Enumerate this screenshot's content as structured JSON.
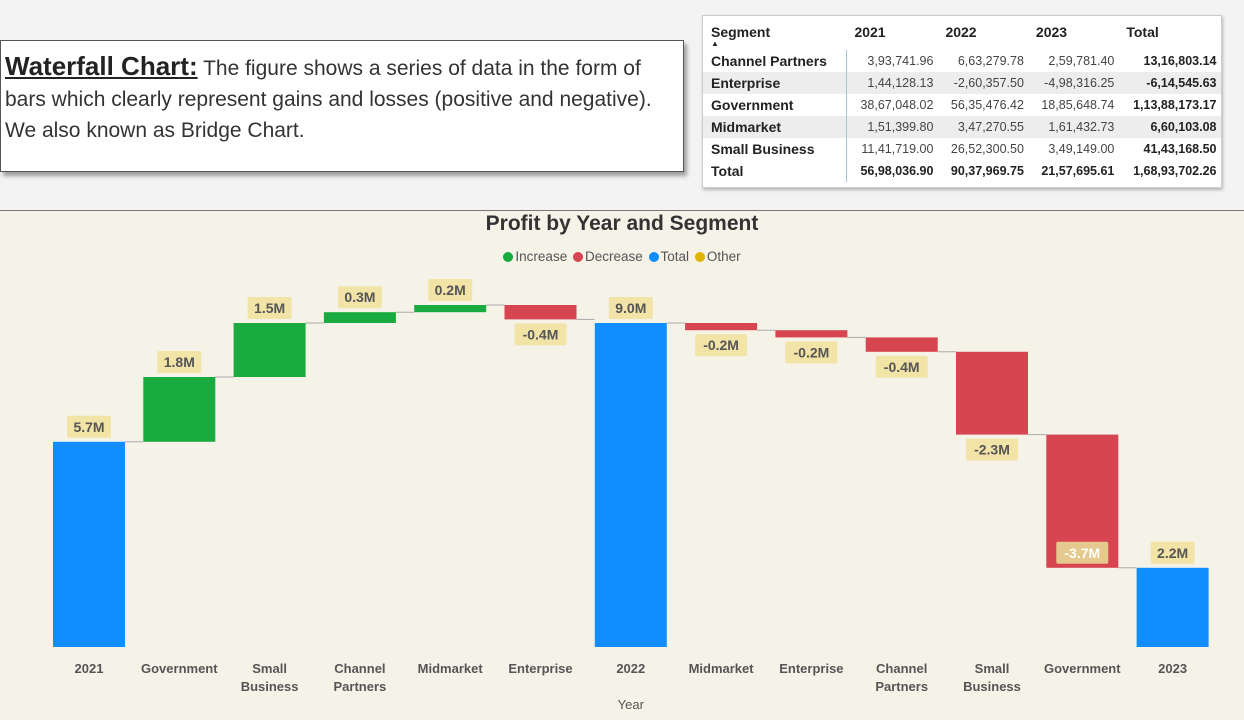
{
  "description": {
    "title": "Waterfall Chart:",
    "text": " The figure shows a series of data in the form of bars which clearly represent gains and losses (positive and negative). We also known as Bridge Chart."
  },
  "table": {
    "headers": [
      "Segment",
      "2021",
      "2022",
      "2023",
      "Total"
    ],
    "sort_indicator": "▲",
    "rows": [
      {
        "segment": "Channel Partners",
        "y2021": "3,93,741.96",
        "y2022": "6,63,279.78",
        "y2023": "2,59,781.40",
        "total": "13,16,803.14"
      },
      {
        "segment": "Enterprise",
        "y2021": "1,44,128.13",
        "y2022": "-2,60,357.50",
        "y2023": "-4,98,316.25",
        "total": "-6,14,545.63"
      },
      {
        "segment": "Government",
        "y2021": "38,67,048.02",
        "y2022": "56,35,476.42",
        "y2023": "18,85,648.74",
        "total": "1,13,88,173.17"
      },
      {
        "segment": "Midmarket",
        "y2021": "1,51,399.80",
        "y2022": "3,47,270.55",
        "y2023": "1,61,432.73",
        "total": "6,60,103.08"
      },
      {
        "segment": "Small Business",
        "y2021": "11,41,719.00",
        "y2022": "26,52,300.50",
        "y2023": "3,49,149.00",
        "total": "41,43,168.50"
      }
    ],
    "total_row": {
      "segment": "Total",
      "y2021": "56,98,036.90",
      "y2022": "90,37,969.75",
      "y2023": "21,57,695.61",
      "total": "1,68,93,702.26"
    }
  },
  "chart_data": {
    "type": "waterfall",
    "title": "Profit by Year and Segment",
    "xlabel": "Year",
    "ylabel": "",
    "legend": [
      {
        "name": "Increase",
        "color": "#1aab40"
      },
      {
        "name": "Decrease",
        "color": "#d64550"
      },
      {
        "name": "Total",
        "color": "#118dff"
      },
      {
        "name": "Other",
        "color": "#e0b400"
      }
    ],
    "legend_position": "top-center",
    "categories": [
      "2021",
      "Government",
      "Small Business",
      "Channel Partners",
      "Midmarket",
      "Enterprise",
      "2022",
      "Midmarket",
      "Enterprise",
      "Channel Partners",
      "Small Business",
      "Government",
      "2023"
    ],
    "values": [
      5.7,
      1.8,
      1.5,
      0.3,
      0.2,
      -0.4,
      9.0,
      -0.2,
      -0.2,
      -0.4,
      -2.3,
      -3.7,
      2.2
    ],
    "kinds": [
      "total",
      "increase",
      "increase",
      "increase",
      "increase",
      "decrease",
      "total",
      "decrease",
      "decrease",
      "decrease",
      "decrease",
      "decrease",
      "total"
    ],
    "data_labels": [
      "5.7M",
      "1.8M",
      "1.5M",
      "0.3M",
      "0.2M",
      "-0.4M",
      "9.0M",
      "-0.2M",
      "-0.2M",
      "-0.4M",
      "-2.3M",
      "-3.7M",
      "2.2M"
    ],
    "ylim": [
      0,
      9.4
    ],
    "grid": false
  }
}
